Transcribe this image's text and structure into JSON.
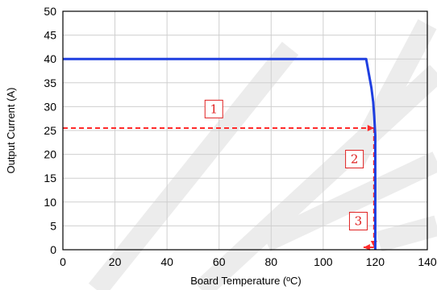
{
  "chart_data": {
    "type": "line",
    "xlabel": "Board Temperature (ºC)",
    "ylabel": "Output Current (A)",
    "xlim": [
      0,
      140
    ],
    "ylim": [
      0,
      50
    ],
    "x_ticks": [
      0,
      20,
      40,
      60,
      80,
      100,
      120,
      140
    ],
    "y_ticks": [
      0,
      5,
      10,
      15,
      20,
      25,
      30,
      35,
      40,
      45,
      50
    ],
    "grid": true,
    "series": [
      {
        "color": "#1f3fe0",
        "x": [
          0,
          116.5,
          117.5,
          118.5,
          119.2,
          119.6,
          119.8,
          120,
          120
        ],
        "y": [
          40,
          40,
          37,
          34,
          31,
          28,
          26,
          24,
          0
        ]
      }
    ],
    "annotations": [
      {
        "label": "1",
        "x": 58,
        "y": 29.5
      },
      {
        "label": "2",
        "x": 112,
        "y": 19
      },
      {
        "label": "3",
        "x": 113.5,
        "y": 6
      }
    ],
    "guide_lines": [
      {
        "from": [
          0,
          25.5
        ],
        "to": [
          119.5,
          25.5
        ],
        "color": "#ff2a2a"
      },
      {
        "from": [
          119.5,
          25.5
        ],
        "to": [
          119.5,
          0.5
        ],
        "color": "#ff2a2a"
      },
      {
        "from": [
          119.5,
          0.5
        ],
        "to": [
          115.5,
          0.5
        ],
        "color": "#ff2a2a"
      }
    ]
  }
}
